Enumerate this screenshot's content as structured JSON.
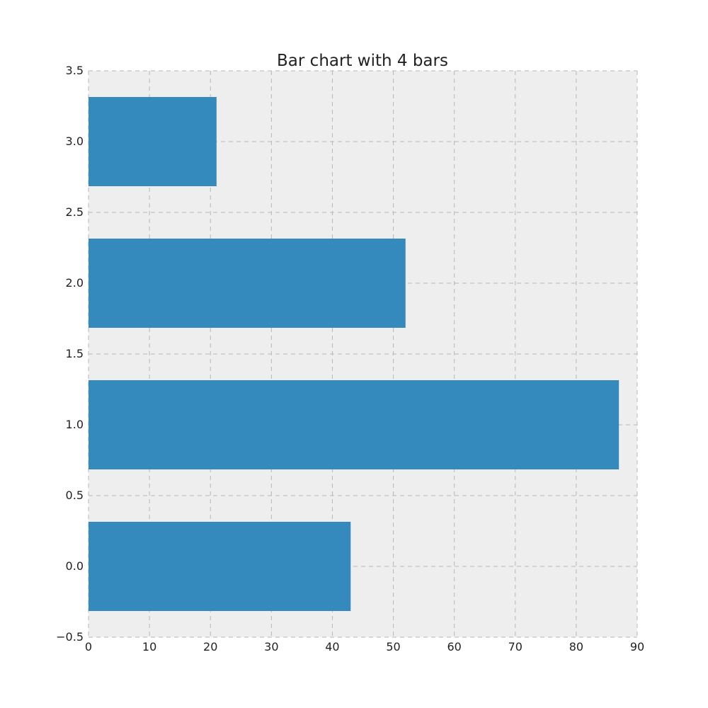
{
  "chart_data": {
    "type": "bar",
    "orientation": "horizontal",
    "title": "Bar chart with 4 bars",
    "xlabel": "",
    "ylabel": "",
    "categories": [
      0,
      1,
      2,
      3
    ],
    "values": [
      43,
      87,
      52,
      21
    ],
    "bar_width": 0.63,
    "xlim": [
      0,
      90
    ],
    "ylim": [
      -0.5,
      3.5
    ],
    "xticks": [
      0,
      10,
      20,
      30,
      40,
      50,
      60,
      70,
      80,
      90
    ],
    "xtick_labels": [
      "0",
      "10",
      "20",
      "30",
      "40",
      "50",
      "60",
      "70",
      "80",
      "90"
    ],
    "yticks": [
      -0.5,
      0,
      0.5,
      1,
      1.5,
      2,
      2.5,
      3,
      3.5
    ],
    "ytick_labels": [
      "−0.5",
      "0.0",
      "0.5",
      "1.0",
      "1.5",
      "2.0",
      "2.5",
      "3.0",
      "3.5"
    ],
    "grid": true,
    "colors": {
      "bar": "#348ABD",
      "plot_background": "#EEEEEE",
      "grid": "#B8B8B8",
      "text": "#222222"
    }
  }
}
